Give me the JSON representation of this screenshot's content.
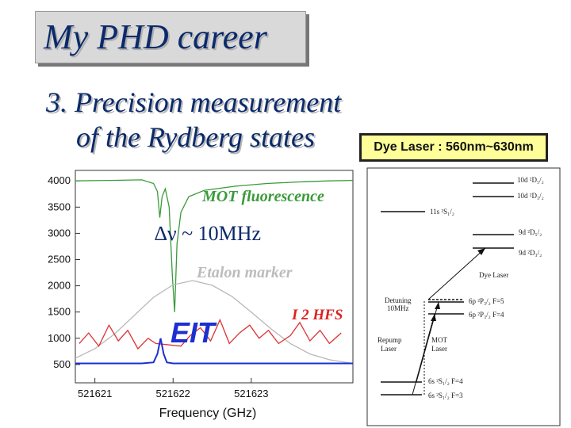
{
  "slide": {
    "title": "My PHD career",
    "subtitle_line1": "3. Precision measurement",
    "subtitle_line2": "of the Rydberg states",
    "dye_laser_label": "Dye Laser : 560nm~630nm"
  },
  "chart_data": {
    "type": "line",
    "xlabel": "Frequency (GHz)",
    "ylabel": "",
    "x_ticks": [
      "521621",
      "521622",
      "521623"
    ],
    "y_ticks": [
      "500",
      "1000",
      "1500",
      "2000",
      "2500",
      "3000",
      "3500",
      "4000"
    ],
    "xlim": [
      521620.75,
      521624.3
    ],
    "ylim": [
      150,
      4200
    ],
    "annotations": {
      "mot": "MOT  fluorescence",
      "delta": "∆ν ~ 10MHz",
      "etalon": "Etalon marker",
      "i2": "I 2  HFS",
      "eit": "EIT"
    },
    "series": [
      {
        "name": "MOT fluorescence",
        "color": "#3a9a3a",
        "x": [
          521620.75,
          521621.2,
          521621.6,
          521621.75,
          521621.8,
          521621.83,
          521621.86,
          521621.9,
          521621.95,
          521621.99,
          521622.02,
          521622.05,
          521622.1,
          521622.2,
          521622.4,
          521622.8,
          521623.2,
          521623.6,
          521624.0,
          521624.3
        ],
        "y": [
          4000,
          4010,
          4020,
          3950,
          3800,
          3300,
          3700,
          3850,
          3500,
          2200,
          1500,
          2800,
          3400,
          3700,
          3820,
          3900,
          3950,
          3980,
          4000,
          4010
        ]
      },
      {
        "name": "Etalon marker",
        "color": "#b8b8b8",
        "x": [
          521620.75,
          521621.0,
          521621.25,
          521621.5,
          521621.75,
          521622.0,
          521622.25,
          521622.5,
          521622.75,
          521623.0,
          521623.25,
          521623.5,
          521623.75,
          521624.0,
          521624.3
        ],
        "y": [
          620,
          800,
          1080,
          1430,
          1780,
          2020,
          2100,
          2010,
          1800,
          1500,
          1180,
          900,
          700,
          590,
          520
        ]
      },
      {
        "name": "I2 HFS",
        "color": "#dd3333",
        "x": [
          521620.8,
          521620.92,
          521621.05,
          521621.18,
          521621.3,
          521621.42,
          521621.55,
          521621.68,
          521621.78,
          521622.1,
          521622.22,
          521622.35,
          521622.48,
          521622.6,
          521622.72,
          521622.85,
          521622.98,
          521623.1,
          521623.22,
          521623.35,
          521623.5,
          521623.62,
          521623.75,
          521623.88,
          521624.0,
          521624.15
        ],
        "y": [
          900,
          1100,
          850,
          1250,
          950,
          1150,
          800,
          1000,
          900,
          850,
          1050,
          1200,
          950,
          1350,
          900,
          1100,
          1250,
          1000,
          1150,
          900,
          1050,
          1300,
          950,
          1150,
          900,
          1100
        ]
      },
      {
        "name": "EIT",
        "color": "#1c2fd1",
        "x": [
          521620.75,
          521621.6,
          521621.75,
          521621.8,
          521621.84,
          521621.88,
          521621.92,
          521622.0,
          521622.5,
          521623.0,
          521623.5,
          521624.3
        ],
        "y": [
          520,
          520,
          540,
          700,
          1000,
          700,
          540,
          520,
          520,
          520,
          520,
          520
        ]
      }
    ]
  },
  "energy_levels": {
    "states": [
      "10d ²D₅/₂",
      "10d ²D₃/₂",
      "11s ²S₁/₂",
      "9d ²D₅/₂",
      "9d ²D₃/₂",
      "6p ²P₃/₂ F=5",
      "6p ²P₃/₂ F=4",
      "6s ²S₁/₂ F=4",
      "6s ²S₁/₂ F=3"
    ],
    "detuning_label": "Detuning\n10MHz",
    "detuning_line1": "Detuning",
    "detuning_line2": "10MHz",
    "dye_laser": "Dye Laser",
    "repump_line1": "Repump",
    "repump_line2": "Laser",
    "mot_line1": "MOT",
    "mot_line2": "Laser"
  }
}
